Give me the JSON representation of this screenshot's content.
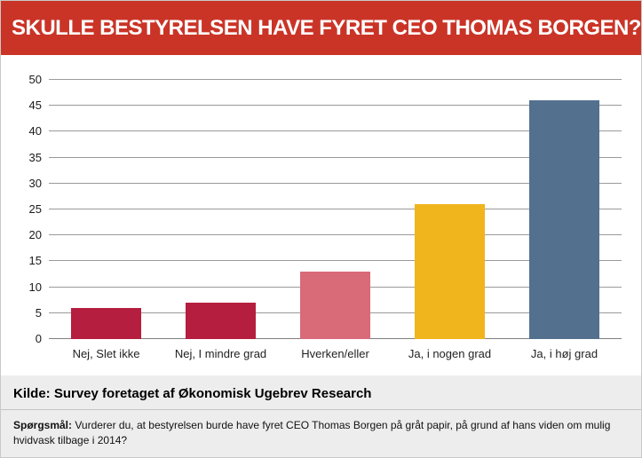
{
  "header": {
    "title": "SKULLE BESTYRELSEN HAVE FYRET CEO THOMAS BORGEN?"
  },
  "chart_data": {
    "type": "bar",
    "title": "SKULLE BESTYRELSEN HAVE FYRET CEO THOMAS BORGEN?",
    "categories": [
      "Nej, Slet ikke",
      "Nej, I mindre grad",
      "Hverken/eller",
      "Ja, i nogen grad",
      "Ja, i høj grad"
    ],
    "values": [
      6,
      7,
      13,
      26,
      46
    ],
    "colors": [
      "#b51e3e",
      "#b51e3e",
      "#d96a78",
      "#f0b41c",
      "#53708e"
    ],
    "xlabel": "",
    "ylabel": "",
    "ylim": [
      0,
      50
    ],
    "ytick_step": 5,
    "grid": true,
    "legend": false
  },
  "footer": {
    "source": "Kilde: Survey foretaget af Økonomisk Ugebrev Research",
    "question_label": "Spørgsmål:",
    "question_text": "Vurderer du, at bestyrelsen burde have fyret CEO Thomas Borgen på gråt papir, på grund af hans viden om mulig hvidvask tilbage i 2014?"
  },
  "colors": {
    "banner": "#ca3427",
    "footer_background": "#ededed",
    "gridline": "#9a9a9a"
  }
}
